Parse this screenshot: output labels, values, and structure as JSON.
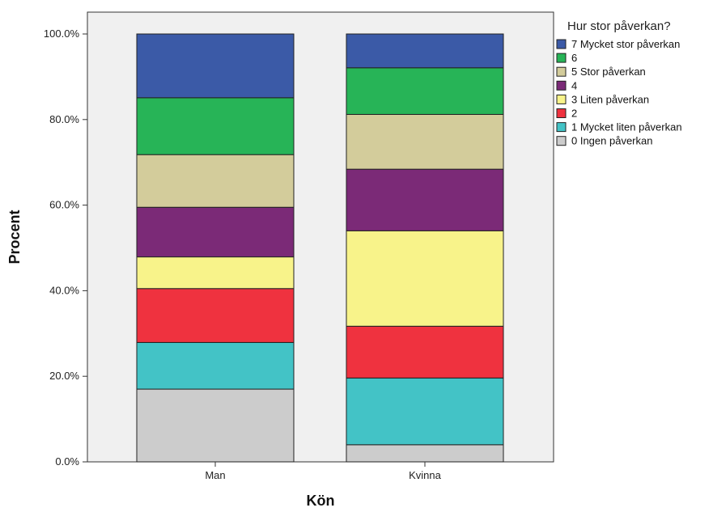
{
  "chart_data": {
    "type": "bar",
    "stacked": true,
    "categories": [
      "Man",
      "Kvinna"
    ],
    "xlabel": "Kön",
    "ylabel": "Procent",
    "ylim": [
      0,
      100
    ],
    "yticks": [
      0,
      20,
      40,
      60,
      80,
      100
    ],
    "ytick_labels": [
      "0.0%",
      "20.0%",
      "40.0%",
      "60.0%",
      "80.0%",
      "100.0%"
    ],
    "grid": false,
    "legend": {
      "title": "Hur stor påverkan?",
      "placement": "right"
    },
    "series": [
      {
        "name": "0 Ingen påverkan",
        "color": "#cccccc",
        "values": [
          17.0,
          4.0
        ]
      },
      {
        "name": "1 Mycket liten påverkan",
        "color": "#43c3c6",
        "values": [
          10.9,
          15.6
        ]
      },
      {
        "name": "2",
        "color": "#ef323f",
        "values": [
          12.6,
          12.1
        ]
      },
      {
        "name": "3 Liten påverkan",
        "color": "#f8f38a",
        "values": [
          7.4,
          22.3
        ]
      },
      {
        "name": "4",
        "color": "#7b2a77",
        "values": [
          11.6,
          14.4
        ]
      },
      {
        "name": "5 Stor påverkan",
        "color": "#d3cc9b",
        "values": [
          12.3,
          12.8
        ]
      },
      {
        "name": "6",
        "color": "#27b457",
        "values": [
          13.3,
          10.9
        ]
      },
      {
        "name": "7 Mycket stor påverkan",
        "color": "#3b5aa7",
        "values": [
          14.9,
          7.9
        ]
      }
    ],
    "plot_background": "#f0f0f0"
  }
}
